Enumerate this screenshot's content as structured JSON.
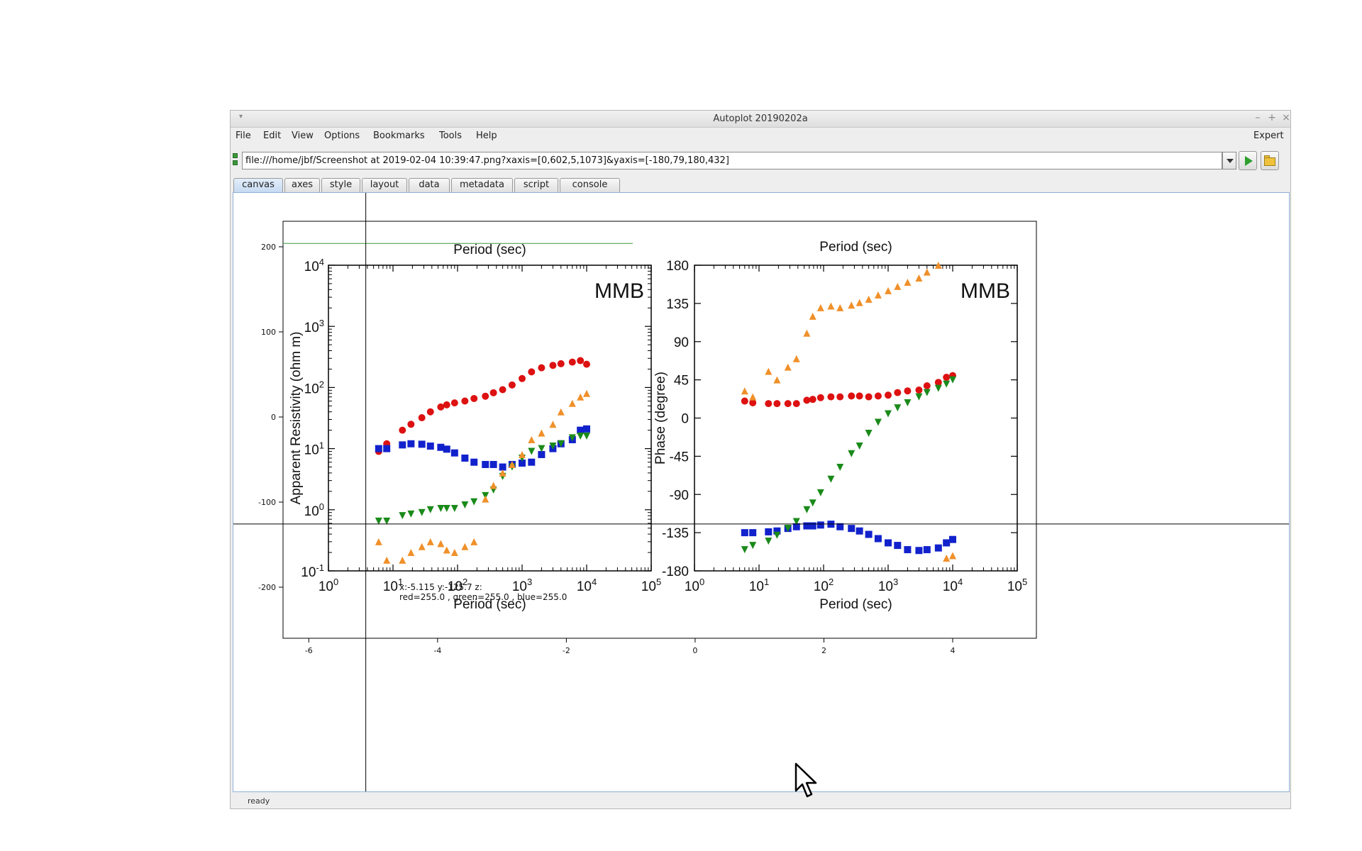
{
  "window": {
    "title": "Autoplot 20190202a",
    "menu": [
      "File",
      "Edit",
      "View",
      "Options",
      "Bookmarks",
      "Tools",
      "Help"
    ],
    "expert_label": "Expert",
    "url": "file:///home/jbf/Screenshot at 2019-02-04 10:39:47.png?xaxis=[0,602,5,1073]&yaxis=[-180,79,180,432]",
    "tabs": [
      "canvas",
      "axes",
      "style",
      "layout",
      "data",
      "metadata",
      "script",
      "console"
    ],
    "active_tab": "canvas",
    "status": "ready",
    "icons": [
      "window-menu-icon",
      "minimize-icon",
      "maximize-icon",
      "close-icon",
      "dropdown-arrow-icon",
      "play-icon",
      "folder-icon",
      "mouse-pointer-icon"
    ]
  },
  "readout": {
    "line1": "x:-5.115  y:-125.7  z:",
    "line2": "red=255.0 , green=255.0 , blue=255.0"
  },
  "chart_data": [
    {
      "type": "scatter",
      "title": "",
      "xlabel": "",
      "ylabel": "",
      "x_ticks": [
        -6,
        -4,
        -2,
        0,
        2,
        4
      ],
      "y_ticks": [
        -200,
        -100,
        0,
        100,
        200
      ],
      "xlim": [
        -6.4,
        5.3
      ],
      "ylim": [
        -260,
        230
      ],
      "crosshair": {
        "x": -5.115,
        "y": -125.7
      },
      "green_line_y": 204
    },
    {
      "type": "scatter",
      "title": "MMB",
      "xlabel": "Period (sec)",
      "ylabel": "Apparent Resistivity (ohm m)",
      "x_scale": "log",
      "y_scale": "log",
      "xlim": [
        1,
        100000
      ],
      "ylim": [
        0.1,
        10000
      ],
      "x_tick_exponents": [
        0,
        1,
        2,
        3,
        4,
        5
      ],
      "y_tick_exponents": [
        -1,
        0,
        1,
        2,
        3,
        4
      ],
      "series": [
        {
          "color": "#dd1111",
          "marker": "circle",
          "x": [
            6,
            8,
            14,
            19,
            28,
            38,
            55,
            68,
            90,
            130,
            180,
            270,
            360,
            500,
            700,
            1000,
            1400,
            2000,
            3000,
            4000,
            6000,
            8000,
            10000
          ],
          "y": [
            9,
            12,
            20,
            25,
            32,
            40,
            48,
            52,
            56,
            60,
            66,
            72,
            82,
            92,
            110,
            140,
            180,
            210,
            230,
            245,
            260,
            275,
            240
          ]
        },
        {
          "color": "#1122cc",
          "marker": "square",
          "x": [
            6,
            8,
            14,
            19,
            28,
            38,
            55,
            68,
            90,
            130,
            180,
            270,
            360,
            500,
            700,
            1000,
            1400,
            2000,
            3000,
            4000,
            6000,
            8000,
            10000
          ],
          "y": [
            10,
            10,
            11.5,
            12,
            11.8,
            11,
            10.5,
            9.8,
            8.5,
            7,
            6,
            5.5,
            5.5,
            5,
            5.5,
            5.8,
            6,
            8,
            10,
            12,
            14,
            20,
            21
          ]
        },
        {
          "color": "#1a8a1a",
          "marker": "triangle-down",
          "x": [
            6,
            8,
            14,
            19,
            28,
            38,
            55,
            68,
            90,
            130,
            180,
            270,
            360,
            500,
            700,
            1000,
            1400,
            2000,
            3000,
            4000,
            6000,
            8000,
            10000
          ],
          "y": [
            0.65,
            0.65,
            0.8,
            0.85,
            0.9,
            1,
            1.05,
            1.05,
            1.05,
            1.2,
            1.35,
            1.7,
            2.1,
            3.5,
            5,
            7,
            9,
            10,
            11,
            12,
            15,
            16,
            16
          ]
        },
        {
          "color": "#f0902a",
          "marker": "triangle-up",
          "x": [
            6,
            8,
            14,
            19,
            28,
            38,
            55,
            68,
            90,
            130,
            180,
            270,
            360,
            500,
            700,
            1000,
            1400,
            2000,
            3000,
            4000,
            6000,
            8000,
            10000
          ],
          "y": [
            0.3,
            0.15,
            0.15,
            0.2,
            0.25,
            0.3,
            0.28,
            0.22,
            0.2,
            0.25,
            0.3,
            1.5,
            2.5,
            4,
            5.5,
            8,
            14,
            18,
            25,
            40,
            55,
            70,
            80
          ]
        }
      ]
    },
    {
      "type": "scatter",
      "title": "MMB",
      "xlabel": "Period (sec)",
      "ylabel": "Phase (degree)",
      "top_label": "Period (sec)",
      "x_scale": "log",
      "xlim": [
        1,
        100000
      ],
      "ylim": [
        -180,
        180
      ],
      "y_ticks": [
        180,
        135,
        90,
        45,
        0,
        -45,
        -90,
        -135,
        -180
      ],
      "x_tick_exponents": [
        0,
        1,
        2,
        3,
        4,
        5
      ],
      "series": [
        {
          "color": "#dd1111",
          "marker": "circle",
          "x": [
            6,
            8,
            14,
            19,
            28,
            38,
            55,
            68,
            90,
            130,
            180,
            270,
            360,
            500,
            700,
            1000,
            1400,
            2000,
            3000,
            4000,
            6000,
            8000,
            10000
          ],
          "y": [
            20,
            18,
            17,
            17,
            17,
            17,
            21,
            22,
            24,
            25,
            25,
            26,
            26,
            25,
            26,
            27,
            30,
            32,
            33,
            38,
            42,
            48,
            50
          ]
        },
        {
          "color": "#1122cc",
          "marker": "square",
          "x": [
            6,
            8,
            14,
            19,
            28,
            38,
            55,
            68,
            90,
            130,
            180,
            270,
            360,
            500,
            700,
            1000,
            1400,
            2000,
            3000,
            4000,
            6000,
            8000,
            10000
          ],
          "y": [
            -135,
            -135,
            -134,
            -133,
            -130,
            -128,
            -127,
            -127,
            -126,
            -125,
            -128,
            -130,
            -133,
            -137,
            -142,
            -147,
            -150,
            -155,
            -156,
            -155,
            -153,
            -147,
            -143
          ]
        },
        {
          "color": "#1a8a1a",
          "marker": "triangle-down",
          "x": [
            6,
            8,
            14,
            19,
            28,
            38,
            55,
            68,
            90,
            130,
            180,
            270,
            360,
            500,
            700,
            1000,
            1400,
            2000,
            3000,
            4000,
            6000,
            8000,
            10000
          ],
          "y": [
            -155,
            -150,
            -145,
            -138,
            -130,
            -122,
            -108,
            -100,
            -88,
            -72,
            -58,
            -42,
            -33,
            -18,
            -5,
            5,
            12,
            18,
            25,
            30,
            35,
            40,
            45
          ]
        },
        {
          "color": "#f0902a",
          "marker": "triangle-up",
          "x": [
            6,
            8,
            14,
            19,
            28,
            38,
            55,
            68,
            90,
            130,
            180,
            270,
            360,
            500,
            700,
            1000,
            1400,
            2000,
            3000,
            4000,
            6000,
            8000,
            10000
          ],
          "y": [
            32,
            25,
            55,
            45,
            60,
            70,
            100,
            120,
            130,
            132,
            130,
            133,
            136,
            140,
            145,
            150,
            155,
            160,
            165,
            172,
            180,
            -165,
            -162
          ]
        }
      ]
    }
  ]
}
